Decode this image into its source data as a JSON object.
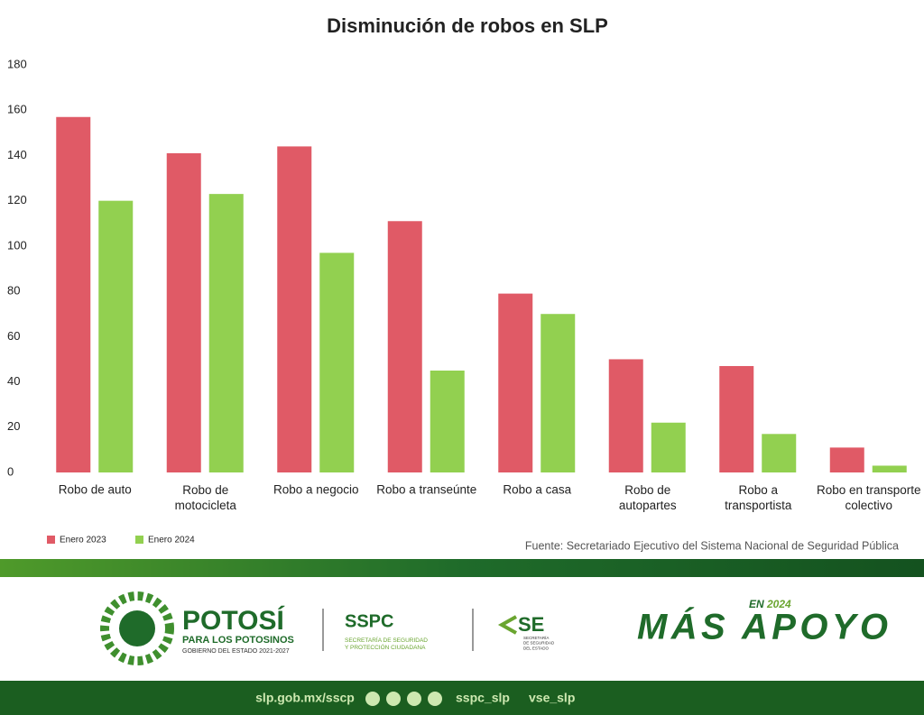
{
  "chart_data": {
    "type": "bar",
    "title": "Disminución de robos en SLP",
    "categories": [
      "Robo de auto",
      "Robo de\nmotocicleta",
      "Robo a negocio",
      "Robo a transeúnte",
      "Robo a casa",
      "Robo de\nautopartes",
      "Robo a\ntransportista",
      "Robo en transporte\ncolectivo"
    ],
    "series": [
      {
        "name": "Enero 2023",
        "color": "#e05a66",
        "values": [
          157,
          141,
          144,
          111,
          79,
          50,
          47,
          11
        ]
      },
      {
        "name": "Enero 2024",
        "color": "#92d050",
        "values": [
          120,
          123,
          97,
          45,
          70,
          22,
          17,
          3
        ]
      }
    ],
    "ylim": [
      0,
      180
    ],
    "yticks": [
      0,
      20,
      40,
      60,
      80,
      100,
      120,
      140,
      160,
      180
    ],
    "grid": false,
    "legend": "bottom-left",
    "source": "Fuente: Secretariado Ejecutivo del Sistema Nacional de Seguridad Pública"
  },
  "footer": {
    "potosi": "POTOSÍ",
    "potosi_sub": "PARA LOS POTOSINOS",
    "potosi_gov": "GOBIERNO DEL ESTADO 2021-2027",
    "sspc": "SSPC",
    "sspc_sub": "SECRETARÍA DE SEGURIDAD\nY PROTECCIÓN CIUDADANA",
    "vse": "SE",
    "vse_sub": "SECRETARÍA\nDE SEGURIDAD\nDEL ESTADO",
    "en": "EN",
    "year": "2024",
    "slogan": "MÁS APOYO",
    "web": "slp.gob.mx/sscp",
    "handle1": "sspc_slp",
    "handle2": "vse_slp"
  }
}
